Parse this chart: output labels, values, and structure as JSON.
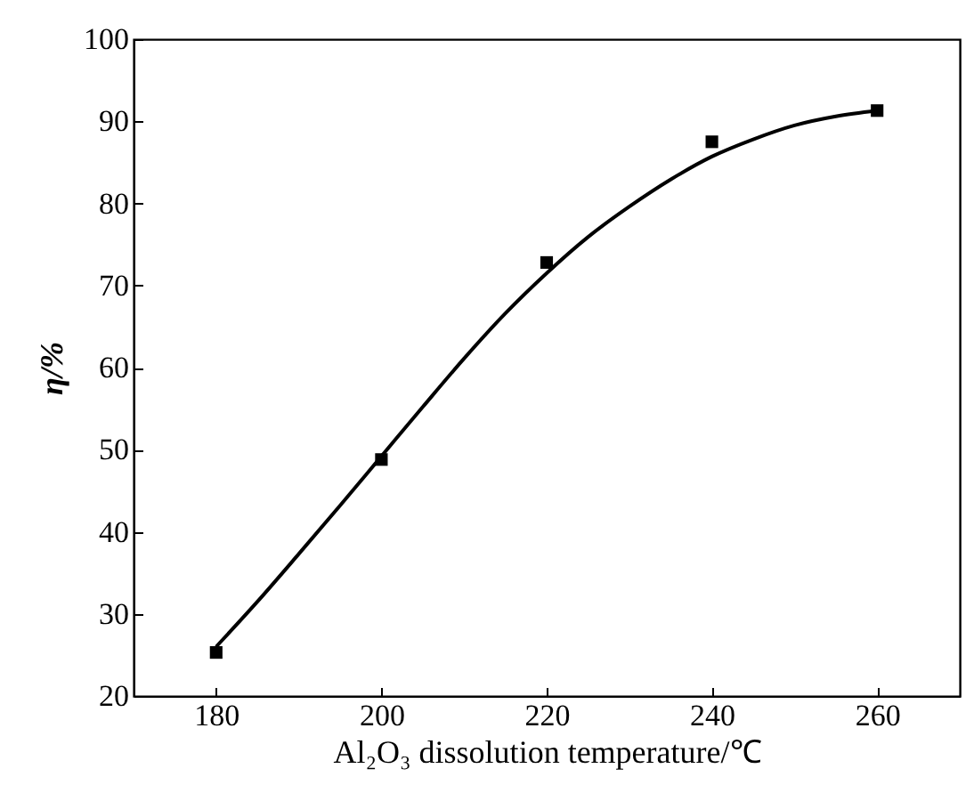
{
  "chart_data": {
    "type": "scatter",
    "xlabel": "Al₂O₃ dissolution temperature/℃",
    "ylabel": "η/%",
    "x": [
      180,
      200,
      220,
      240,
      260
    ],
    "marker": "square",
    "xlim": [
      170,
      270
    ],
    "xticks": [
      180,
      200,
      220,
      240,
      260
    ],
    "ylim": [
      20,
      100
    ],
    "yticks": [
      20,
      30,
      40,
      50,
      60,
      70,
      80,
      90,
      100
    ],
    "grid": false,
    "series": [
      {
        "color": "#000000",
        "values": [
          25.3,
          48.8,
          72.8,
          87.5,
          91.3
        ]
      },
      {
        "type": "line",
        "color": "#000000",
        "marker": "none",
        "x": [
          180,
          185,
          190,
          195,
          200,
          205,
          210,
          215,
          220,
          225,
          230,
          235,
          240,
          245,
          250,
          255,
          260
        ],
        "values": [
          26,
          31.5,
          37.3,
          43.2,
          49.2,
          55.2,
          61.1,
          66.6,
          71.5,
          75.9,
          79.6,
          82.9,
          85.7,
          87.8,
          89.5,
          90.6,
          91.3
        ]
      }
    ]
  }
}
